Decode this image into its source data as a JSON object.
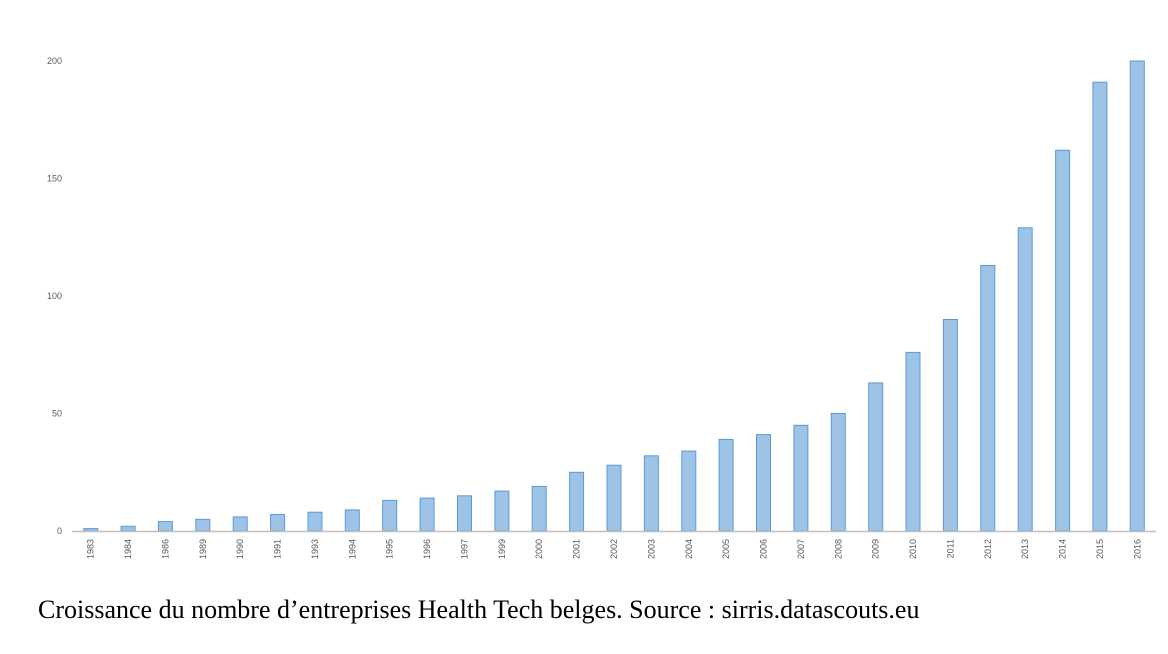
{
  "caption": "Croissance du nombre d’entreprises Health Tech belges. Source : sirris.datascouts.eu",
  "colors": {
    "bar_fill": "#9dc3e6",
    "bar_stroke": "#5b9bd5",
    "axis": "#bfbfbf",
    "tick_text": "#595959"
  },
  "chart_data": {
    "type": "bar",
    "title": "",
    "xlabel": "",
    "ylabel": "",
    "ylim": [
      0,
      200
    ],
    "yticks": [
      0,
      50,
      100,
      150,
      200
    ],
    "grid": false,
    "legend": "none",
    "categories": [
      "1983",
      "1984",
      "1986",
      "1989",
      "1990",
      "1991",
      "1993",
      "1994",
      "1995",
      "1996",
      "1997",
      "1999",
      "2000",
      "2001",
      "2002",
      "2003",
      "2004",
      "2005",
      "2006",
      "2007",
      "2008",
      "2009",
      "2010",
      "2011",
      "2012",
      "2013",
      "2014",
      "2015",
      "2016"
    ],
    "values": [
      1,
      2,
      4,
      5,
      6,
      7,
      8,
      9,
      13,
      14,
      15,
      17,
      19,
      25,
      28,
      32,
      34,
      39,
      41,
      45,
      50,
      63,
      76,
      90,
      113,
      129,
      162,
      191,
      200
    ]
  }
}
